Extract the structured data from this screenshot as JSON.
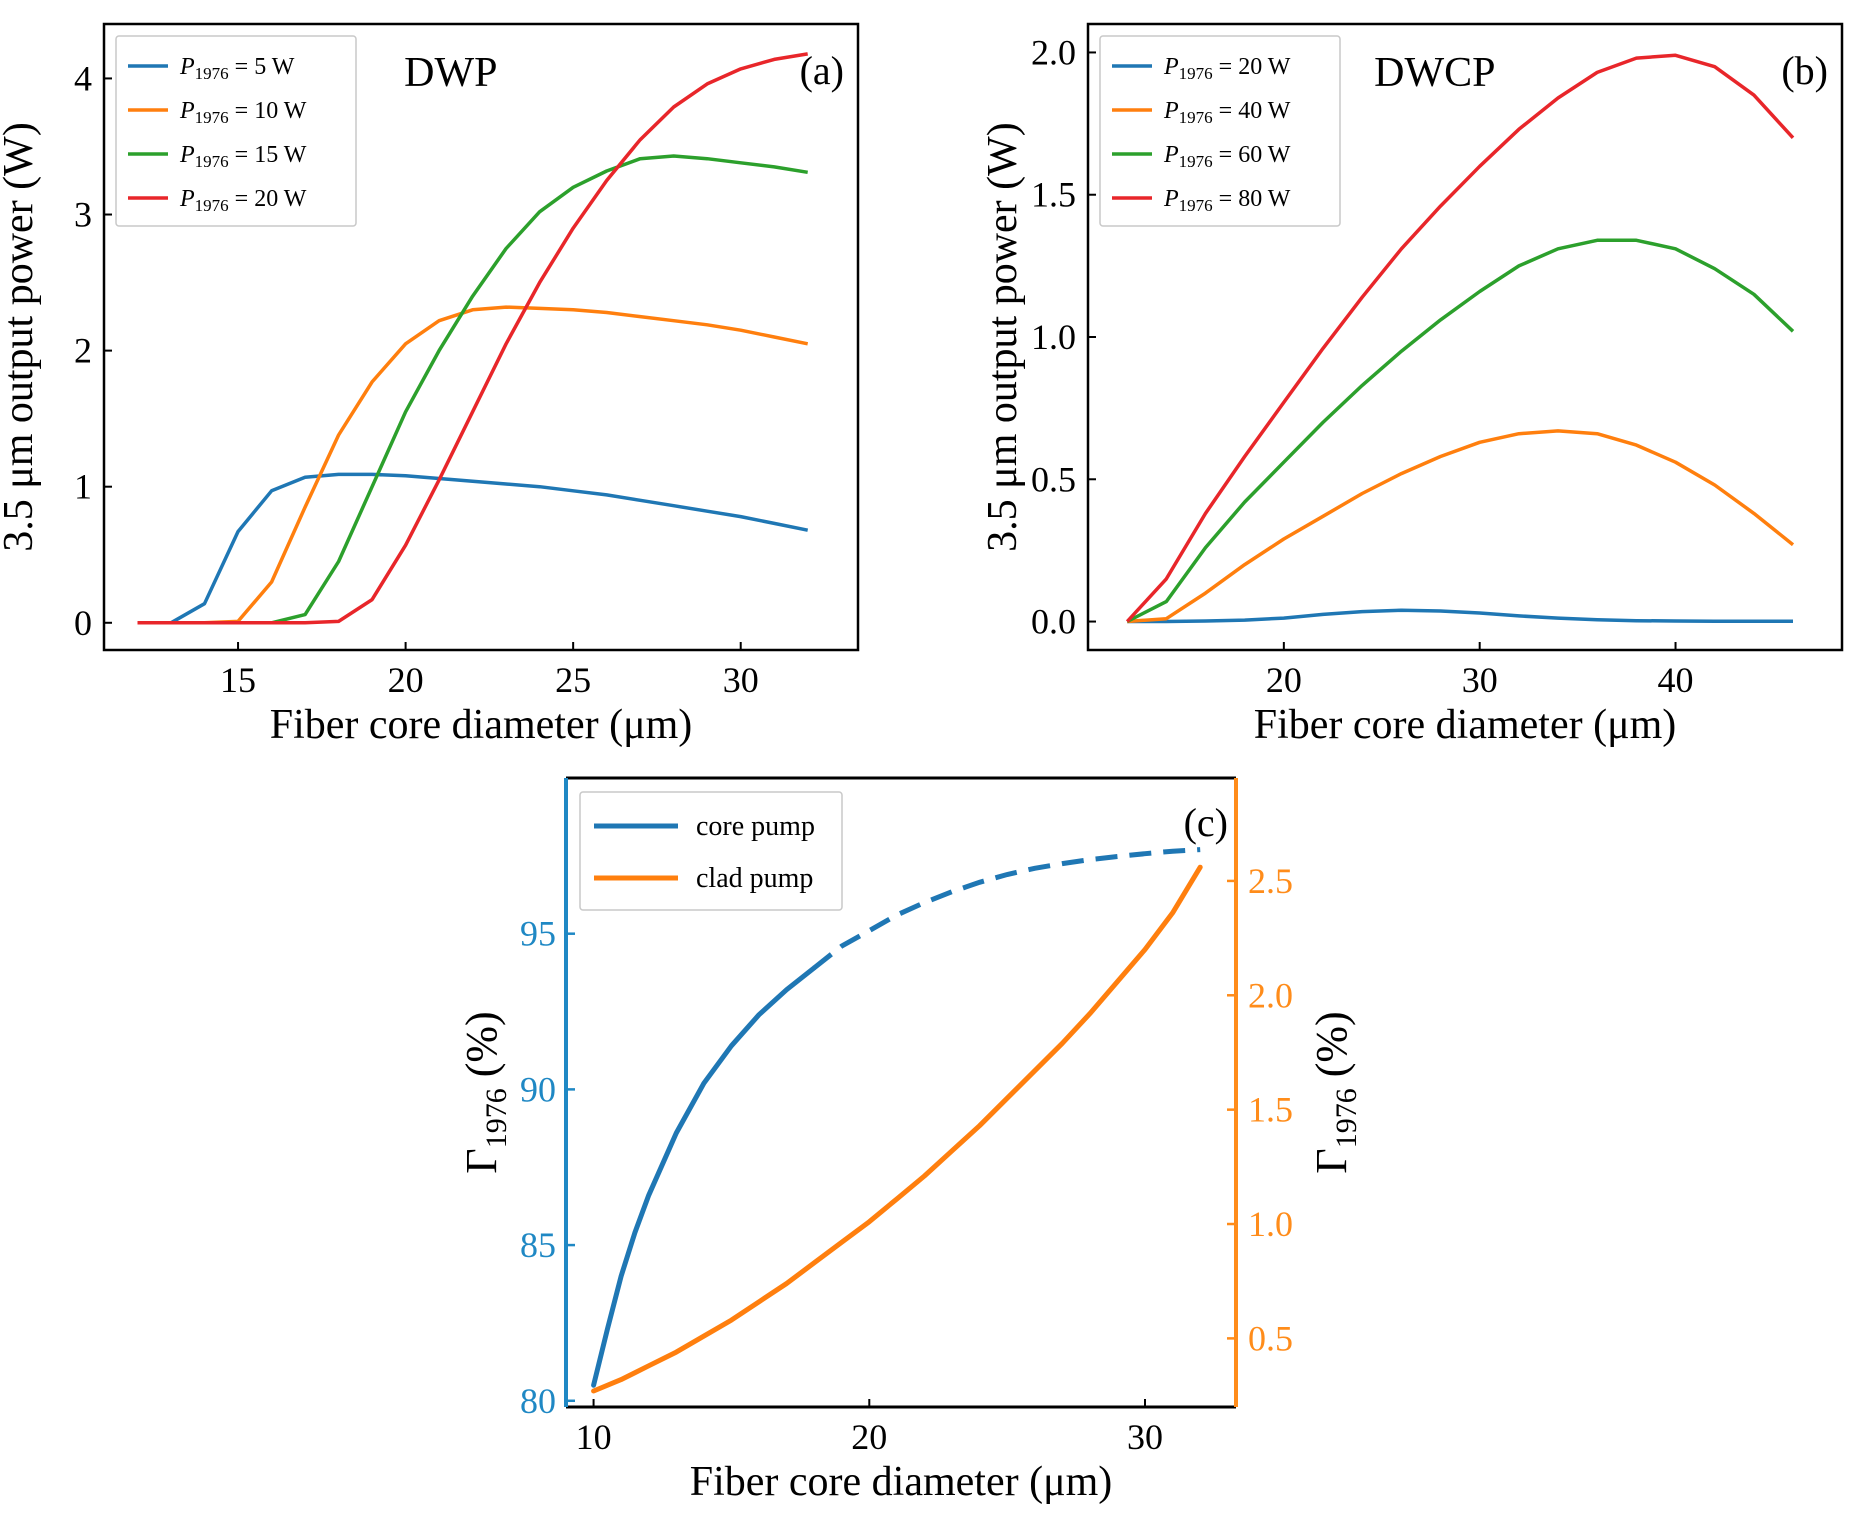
{
  "chart_data": [
    {
      "id": "a",
      "type": "line",
      "panel_label": "(a)",
      "annotation": "DWP",
      "xlabel": "Fiber core diameter (μm)",
      "ylabel": "3.5 μm output power (W)",
      "xlim": [
        11,
        33.5
      ],
      "ylim": [
        -0.2,
        4.4
      ],
      "xticks": [
        15,
        20,
        25,
        30
      ],
      "yticks": [
        0,
        1,
        2,
        3,
        4
      ],
      "ytick_labels": [
        "0",
        "1",
        "2",
        "3",
        "4"
      ],
      "legend": "top-left",
      "legend_prefix": "P",
      "legend_subscript": "1976",
      "grid": false,
      "series": [
        {
          "legend_value": " = 5 W",
          "color": "#1f77b4",
          "x": [
            12,
            13,
            14,
            15,
            16,
            17,
            18,
            19,
            20,
            21,
            22,
            23,
            24,
            25,
            26,
            27,
            28,
            29,
            30,
            31,
            32
          ],
          "y": [
            0,
            0,
            0.14,
            0.67,
            0.97,
            1.07,
            1.09,
            1.09,
            1.08,
            1.06,
            1.04,
            1.02,
            1.0,
            0.97,
            0.94,
            0.9,
            0.86,
            0.82,
            0.78,
            0.73,
            0.68
          ]
        },
        {
          "legend_value": " = 10 W",
          "color": "#ff7f0e",
          "x": [
            12,
            13,
            14,
            15,
            16,
            17,
            18,
            19,
            20,
            21,
            22,
            23,
            24,
            25,
            26,
            27,
            28,
            29,
            30,
            31,
            32
          ],
          "y": [
            0,
            0,
            0,
            0.01,
            0.3,
            0.85,
            1.38,
            1.77,
            2.05,
            2.22,
            2.3,
            2.32,
            2.31,
            2.3,
            2.28,
            2.25,
            2.22,
            2.19,
            2.15,
            2.1,
            2.05
          ]
        },
        {
          "legend_value": " = 15 W",
          "color": "#2ca02c",
          "x": [
            12,
            13,
            14,
            15,
            16,
            17,
            18,
            19,
            20,
            21,
            22,
            23,
            24,
            25,
            26,
            27,
            28,
            29,
            30,
            31,
            32
          ],
          "y": [
            0,
            0,
            0,
            0,
            0,
            0.06,
            0.45,
            1.0,
            1.55,
            2.0,
            2.4,
            2.75,
            3.02,
            3.2,
            3.32,
            3.41,
            3.43,
            3.41,
            3.38,
            3.35,
            3.31
          ]
        },
        {
          "legend_value": " = 20 W",
          "color": "#e8262a",
          "x": [
            12,
            13,
            14,
            15,
            16,
            17,
            18,
            19,
            20,
            21,
            22,
            23,
            24,
            25,
            26,
            27,
            28,
            29,
            30,
            31,
            32
          ],
          "y": [
            0,
            0,
            0,
            0,
            0,
            0,
            0.01,
            0.17,
            0.57,
            1.05,
            1.55,
            2.05,
            2.5,
            2.9,
            3.25,
            3.55,
            3.79,
            3.96,
            4.07,
            4.14,
            4.18
          ]
        }
      ]
    },
    {
      "id": "b",
      "type": "line",
      "panel_label": "(b)",
      "annotation": "DWCP",
      "xlabel": "Fiber core diameter (μm)",
      "ylabel": "3.5 μm output power (W)",
      "xlim": [
        10,
        48.5
      ],
      "ylim": [
        -0.1,
        2.1
      ],
      "xticks": [
        20,
        30,
        40
      ],
      "yticks": [
        0.0,
        0.5,
        1.0,
        1.5,
        2.0
      ],
      "ytick_labels": [
        "0.0",
        "0.5",
        "1.0",
        "1.5",
        "2.0"
      ],
      "legend": "top-left",
      "legend_prefix": "P",
      "legend_subscript": "1976",
      "grid": false,
      "series": [
        {
          "legend_value": " = 20 W",
          "color": "#1f77b4",
          "x": [
            12,
            14,
            16,
            18,
            20,
            22,
            24,
            26,
            28,
            30,
            32,
            34,
            36,
            38,
            40,
            42,
            44,
            46
          ],
          "y": [
            0,
            0,
            0.002,
            0.005,
            0.012,
            0.025,
            0.035,
            0.04,
            0.037,
            0.03,
            0.02,
            0.012,
            0.006,
            0.003,
            0.002,
            0.001,
            0.001,
            0.001
          ]
        },
        {
          "legend_value": " = 40 W",
          "color": "#ff7f0e",
          "x": [
            12,
            14,
            16,
            18,
            20,
            22,
            24,
            26,
            28,
            30,
            32,
            34,
            36,
            38,
            40,
            42,
            44,
            46
          ],
          "y": [
            0,
            0.01,
            0.1,
            0.2,
            0.29,
            0.37,
            0.45,
            0.52,
            0.58,
            0.63,
            0.66,
            0.67,
            0.66,
            0.62,
            0.56,
            0.48,
            0.38,
            0.27
          ]
        },
        {
          "legend_value": " = 60 W",
          "color": "#2ca02c",
          "x": [
            12,
            14,
            16,
            18,
            20,
            22,
            24,
            26,
            28,
            30,
            32,
            34,
            36,
            38,
            40,
            42,
            44,
            46
          ],
          "y": [
            0,
            0.07,
            0.26,
            0.42,
            0.56,
            0.7,
            0.83,
            0.95,
            1.06,
            1.16,
            1.25,
            1.31,
            1.34,
            1.34,
            1.31,
            1.24,
            1.15,
            1.02
          ]
        },
        {
          "legend_value": " = 80 W",
          "color": "#e8262a",
          "x": [
            12,
            14,
            16,
            18,
            20,
            22,
            24,
            26,
            28,
            30,
            32,
            34,
            36,
            38,
            40,
            42,
            44,
            46
          ],
          "y": [
            0,
            0.15,
            0.38,
            0.58,
            0.77,
            0.96,
            1.14,
            1.31,
            1.46,
            1.6,
            1.73,
            1.84,
            1.93,
            1.98,
            1.99,
            1.95,
            1.85,
            1.7
          ]
        }
      ]
    },
    {
      "id": "c",
      "type": "line",
      "panel_label": "(c)",
      "xlabel": "Fiber core diameter (μm)",
      "ylabel_left": "Γ1976 (%)",
      "ylabel_right": "Γ1976 (%)",
      "ylabel_symbol": "Γ",
      "ylabel_subscript": "1976",
      "ylabel_unit": " (%)",
      "xlim": [
        9,
        33.3
      ],
      "ylim_left": [
        79.8,
        100
      ],
      "ylim_right": [
        0.2,
        2.95
      ],
      "xticks": [
        10,
        20,
        30
      ],
      "yticks_left": [
        80,
        85,
        90,
        95
      ],
      "yticks_right": [
        0.5,
        1.0,
        1.5,
        2.0,
        2.5
      ],
      "ytick_labels_right": [
        "0.5",
        "1.0",
        "1.5",
        "2.0",
        "2.5"
      ],
      "left_axis_color": "#1f88c4",
      "right_axis_color": "#ff8c1a",
      "legend": "top-left",
      "grid": false,
      "series": [
        {
          "name": "core pump",
          "axis": "left",
          "color": "#1f77b4",
          "solid_until_x": 18.5,
          "x": [
            10,
            10.5,
            11,
            11.5,
            12,
            13,
            14,
            15,
            16,
            17,
            18,
            19,
            20,
            21,
            22,
            23,
            24,
            25,
            26,
            27,
            28,
            29,
            30,
            31,
            32
          ],
          "y": [
            80.5,
            82.3,
            84.0,
            85.4,
            86.6,
            88.6,
            90.2,
            91.4,
            92.4,
            93.2,
            93.9,
            94.6,
            95.1,
            95.6,
            96.0,
            96.35,
            96.65,
            96.9,
            97.1,
            97.25,
            97.38,
            97.48,
            97.57,
            97.65,
            97.7
          ]
        },
        {
          "name": "clad pump",
          "axis": "right",
          "color": "#ff7f0e",
          "x": [
            10,
            11,
            12,
            13,
            14,
            15,
            16,
            17,
            18,
            19,
            20,
            21,
            22,
            23,
            24,
            25,
            26,
            27,
            28,
            29,
            30,
            31,
            32
          ],
          "y": [
            0.27,
            0.32,
            0.38,
            0.44,
            0.51,
            0.58,
            0.66,
            0.74,
            0.83,
            0.92,
            1.01,
            1.11,
            1.21,
            1.32,
            1.43,
            1.55,
            1.67,
            1.79,
            1.92,
            2.06,
            2.2,
            2.36,
            2.56
          ]
        }
      ]
    }
  ]
}
